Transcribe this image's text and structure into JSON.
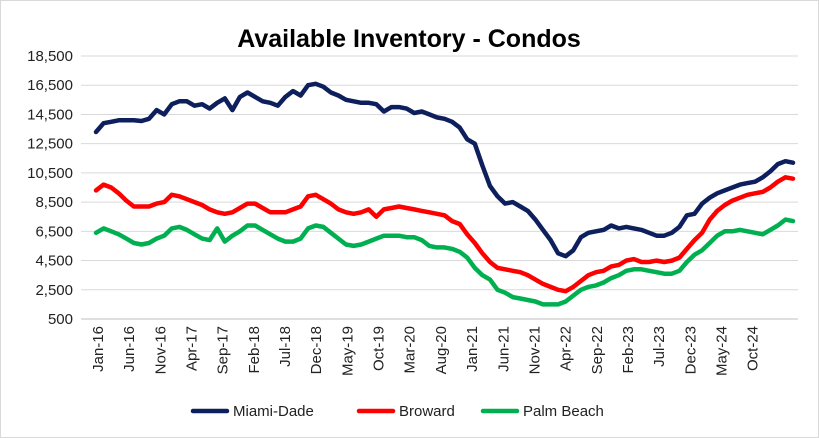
{
  "chart_data": {
    "type": "line",
    "title": "Available Inventory - Condos",
    "xlabel": "",
    "ylabel": "",
    "ylim": [
      500,
      18500
    ],
    "yticks": [
      "500",
      "2,500",
      "4,500",
      "6,500",
      "8,500",
      "10,500",
      "12,500",
      "14,500",
      "16,500",
      "18,500"
    ],
    "xticks": [
      "Jan-16",
      "Jun-16",
      "Nov-16",
      "Apr-17",
      "Sep-17",
      "Feb-18",
      "Jul-18",
      "Dec-18",
      "May-19",
      "Oct-19",
      "Mar-20",
      "Aug-20",
      "Jan-21",
      "Jun-21",
      "Nov-21",
      "Apr-22",
      "Sep-22",
      "Feb-23",
      "Jul-23",
      "Dec-23",
      "May-24",
      "Oct-24"
    ],
    "grid": true,
    "legend": "bottom",
    "colors": {
      "Miami-Dade": "#0d1f5c",
      "Broward": "#ff0000",
      "Palm Beach": "#00b050"
    },
    "series": [
      {
        "name": "Miami-Dade",
        "values": [
          13300,
          13900,
          14000,
          14100,
          14100,
          14100,
          14050,
          14200,
          14800,
          14500,
          15200,
          15400,
          15400,
          15100,
          15200,
          14900,
          15300,
          15600,
          14800,
          15700,
          16000,
          15700,
          15400,
          15300,
          15100,
          15700,
          16100,
          15800,
          16500,
          16600,
          16400,
          16000,
          15800,
          15500,
          15400,
          15300,
          15300,
          15200,
          14700,
          15000,
          15000,
          14900,
          14600,
          14700,
          14500,
          14300,
          14200,
          14000,
          13600,
          12800,
          12500,
          11000,
          9600,
          8900,
          8400,
          8500,
          8200,
          7900,
          7300,
          6600,
          5900,
          5000,
          4800,
          5200,
          6100,
          6400,
          6500,
          6600,
          6900,
          6700,
          6800,
          6700,
          6600,
          6400,
          6200,
          6200,
          6400,
          6800,
          7600,
          7700,
          8400,
          8800,
          9100,
          9300,
          9500,
          9700,
          9800,
          9900,
          10200,
          10600,
          11100,
          11300,
          11200
        ]
      },
      {
        "name": "Broward",
        "values": [
          9300,
          9700,
          9500,
          9100,
          8600,
          8200,
          8200,
          8200,
          8400,
          8500,
          9000,
          8900,
          8700,
          8500,
          8300,
          8000,
          7800,
          7700,
          7800,
          8100,
          8400,
          8400,
          8100,
          7800,
          7800,
          7800,
          8000,
          8200,
          8900,
          9000,
          8700,
          8400,
          8000,
          7800,
          7700,
          7800,
          8000,
          7500,
          8000,
          8100,
          8200,
          8100,
          8000,
          7900,
          7800,
          7700,
          7600,
          7200,
          7000,
          6300,
          5700,
          5000,
          4400,
          4000,
          3900,
          3800,
          3700,
          3500,
          3200,
          2900,
          2700,
          2500,
          2400,
          2700,
          3100,
          3500,
          3700,
          3800,
          4100,
          4200,
          4500,
          4600,
          4400,
          4400,
          4500,
          4400,
          4500,
          4700,
          5300,
          5900,
          6400,
          7300,
          7900,
          8300,
          8600,
          8800,
          9000,
          9100,
          9200,
          9500,
          9900,
          10200,
          10100
        ]
      },
      {
        "name": "Palm Beach",
        "values": [
          6400,
          6700,
          6500,
          6300,
          6000,
          5700,
          5600,
          5700,
          6000,
          6200,
          6700,
          6800,
          6600,
          6300,
          6000,
          5900,
          6700,
          5800,
          6200,
          6500,
          6900,
          6900,
          6600,
          6300,
          6000,
          5800,
          5800,
          6000,
          6700,
          6900,
          6800,
          6400,
          6000,
          5600,
          5500,
          5600,
          5800,
          6000,
          6200,
          6200,
          6200,
          6100,
          6100,
          5900,
          5500,
          5400,
          5400,
          5300,
          5100,
          4700,
          4000,
          3500,
          3200,
          2500,
          2300,
          2000,
          1900,
          1800,
          1700,
          1500,
          1500,
          1500,
          1700,
          2100,
          2500,
          2700,
          2800,
          3000,
          3300,
          3500,
          3800,
          3900,
          3900,
          3800,
          3700,
          3600,
          3600,
          3800,
          4400,
          4900,
          5200,
          5700,
          6200,
          6500,
          6500,
          6600,
          6500,
          6400,
          6300,
          6600,
          6900,
          7300,
          7200
        ]
      }
    ]
  }
}
